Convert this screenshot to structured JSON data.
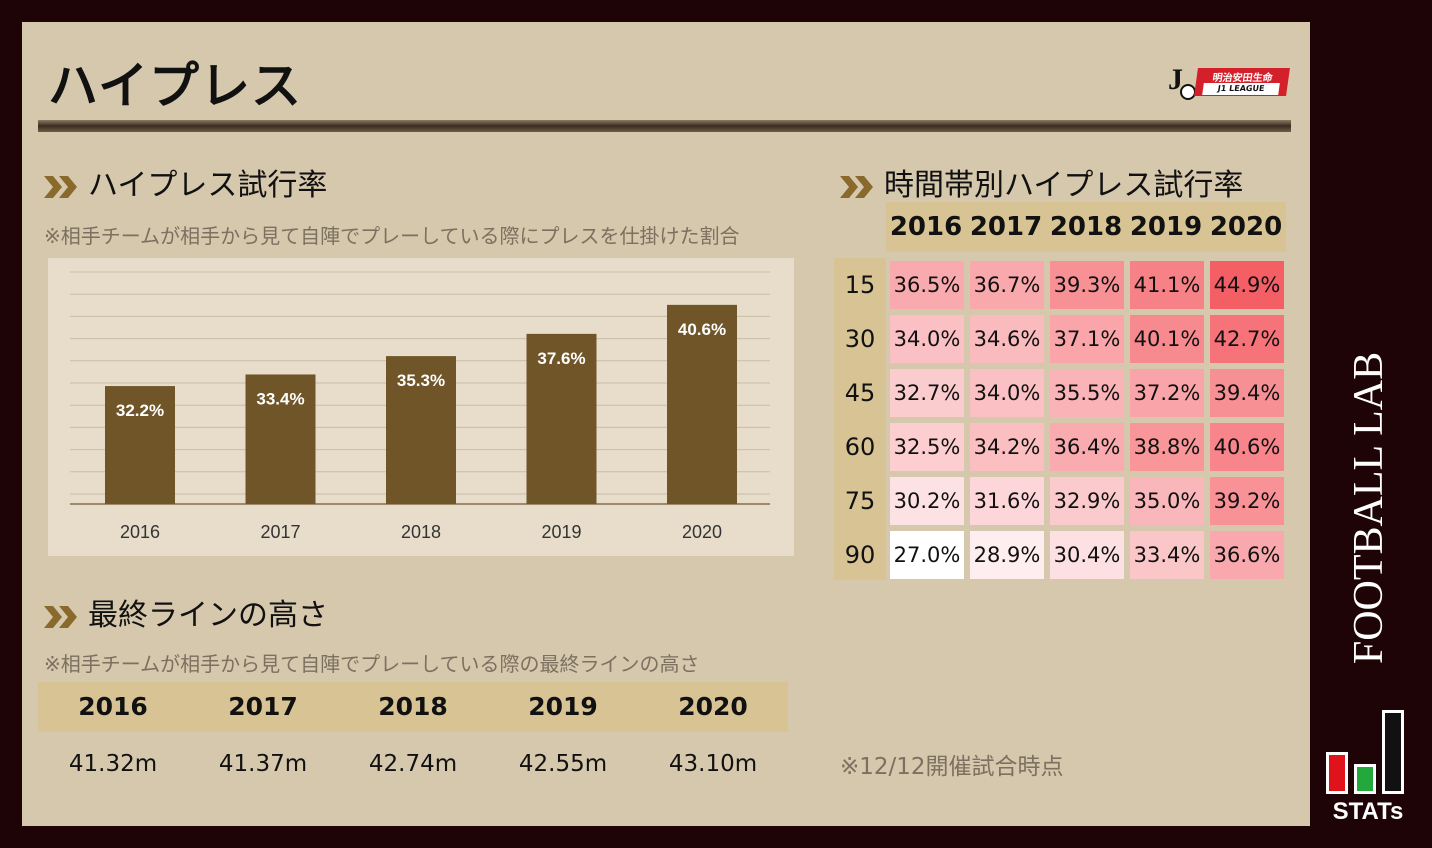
{
  "title": "ハイプレス",
  "logo": {
    "sponsor": "明治安田生命",
    "league": "J1 LEAGUE",
    "mark": "J"
  },
  "attempt_section": {
    "title": "ハイプレス試行率",
    "note": "※相手チームが相手から見て自陣でプレーしている際にプレスを仕掛けた割合"
  },
  "time_section": {
    "title": "時間帯別ハイプレス試行率"
  },
  "line_section": {
    "title": "最終ラインの高さ",
    "note": "※相手チームが相手から見て自陣でプレーしている際の最終ラインの高さ",
    "years": [
      "2016",
      "2017",
      "2018",
      "2019",
      "2020"
    ],
    "values": [
      "41.32m",
      "41.37m",
      "42.74m",
      "42.55m",
      "43.10m"
    ]
  },
  "footnote": "※12/12開催試合時点",
  "brand": {
    "name": "FOOTBALL LAB",
    "stats": "STATs"
  },
  "colors": {
    "bar": "#705528",
    "heat_low": "#ffffff",
    "heat_high": "#f45f66"
  },
  "chart_data": [
    {
      "type": "bar",
      "categories": [
        "2016",
        "2017",
        "2018",
        "2019",
        "2020"
      ],
      "values": [
        32.2,
        33.4,
        35.3,
        37.6,
        40.6
      ],
      "labels": [
        "32.2%",
        "33.4%",
        "35.3%",
        "37.6%",
        "40.6%"
      ],
      "title": "ハイプレス試行率",
      "ylim": [
        20,
        44
      ],
      "grid": true
    },
    {
      "type": "heatmap",
      "title": "時間帯別ハイプレス試行率",
      "columns": [
        "2016",
        "2017",
        "2018",
        "2019",
        "2020"
      ],
      "rows": [
        "15",
        "30",
        "45",
        "60",
        "75",
        "90"
      ],
      "values": [
        [
          36.5,
          36.7,
          39.3,
          41.1,
          44.9
        ],
        [
          34.0,
          34.6,
          37.1,
          40.1,
          42.7
        ],
        [
          32.7,
          34.0,
          35.5,
          37.2,
          39.4
        ],
        [
          32.5,
          34.2,
          36.4,
          38.8,
          40.6
        ],
        [
          30.2,
          31.6,
          32.9,
          35.0,
          39.2
        ],
        [
          27.0,
          28.9,
          30.4,
          33.4,
          36.6
        ]
      ],
      "labels": [
        [
          "36.5%",
          "36.7%",
          "39.3%",
          "41.1%",
          "44.9%"
        ],
        [
          "34.0%",
          "34.6%",
          "37.1%",
          "40.1%",
          "42.7%"
        ],
        [
          "32.7%",
          "34.0%",
          "35.5%",
          "37.2%",
          "39.4%"
        ],
        [
          "32.5%",
          "34.2%",
          "36.4%",
          "38.8%",
          "40.6%"
        ],
        [
          "30.2%",
          "31.6%",
          "32.9%",
          "35.0%",
          "39.2%"
        ],
        [
          "27.0%",
          "28.9%",
          "30.4%",
          "33.4%",
          "36.6%"
        ]
      ]
    }
  ]
}
